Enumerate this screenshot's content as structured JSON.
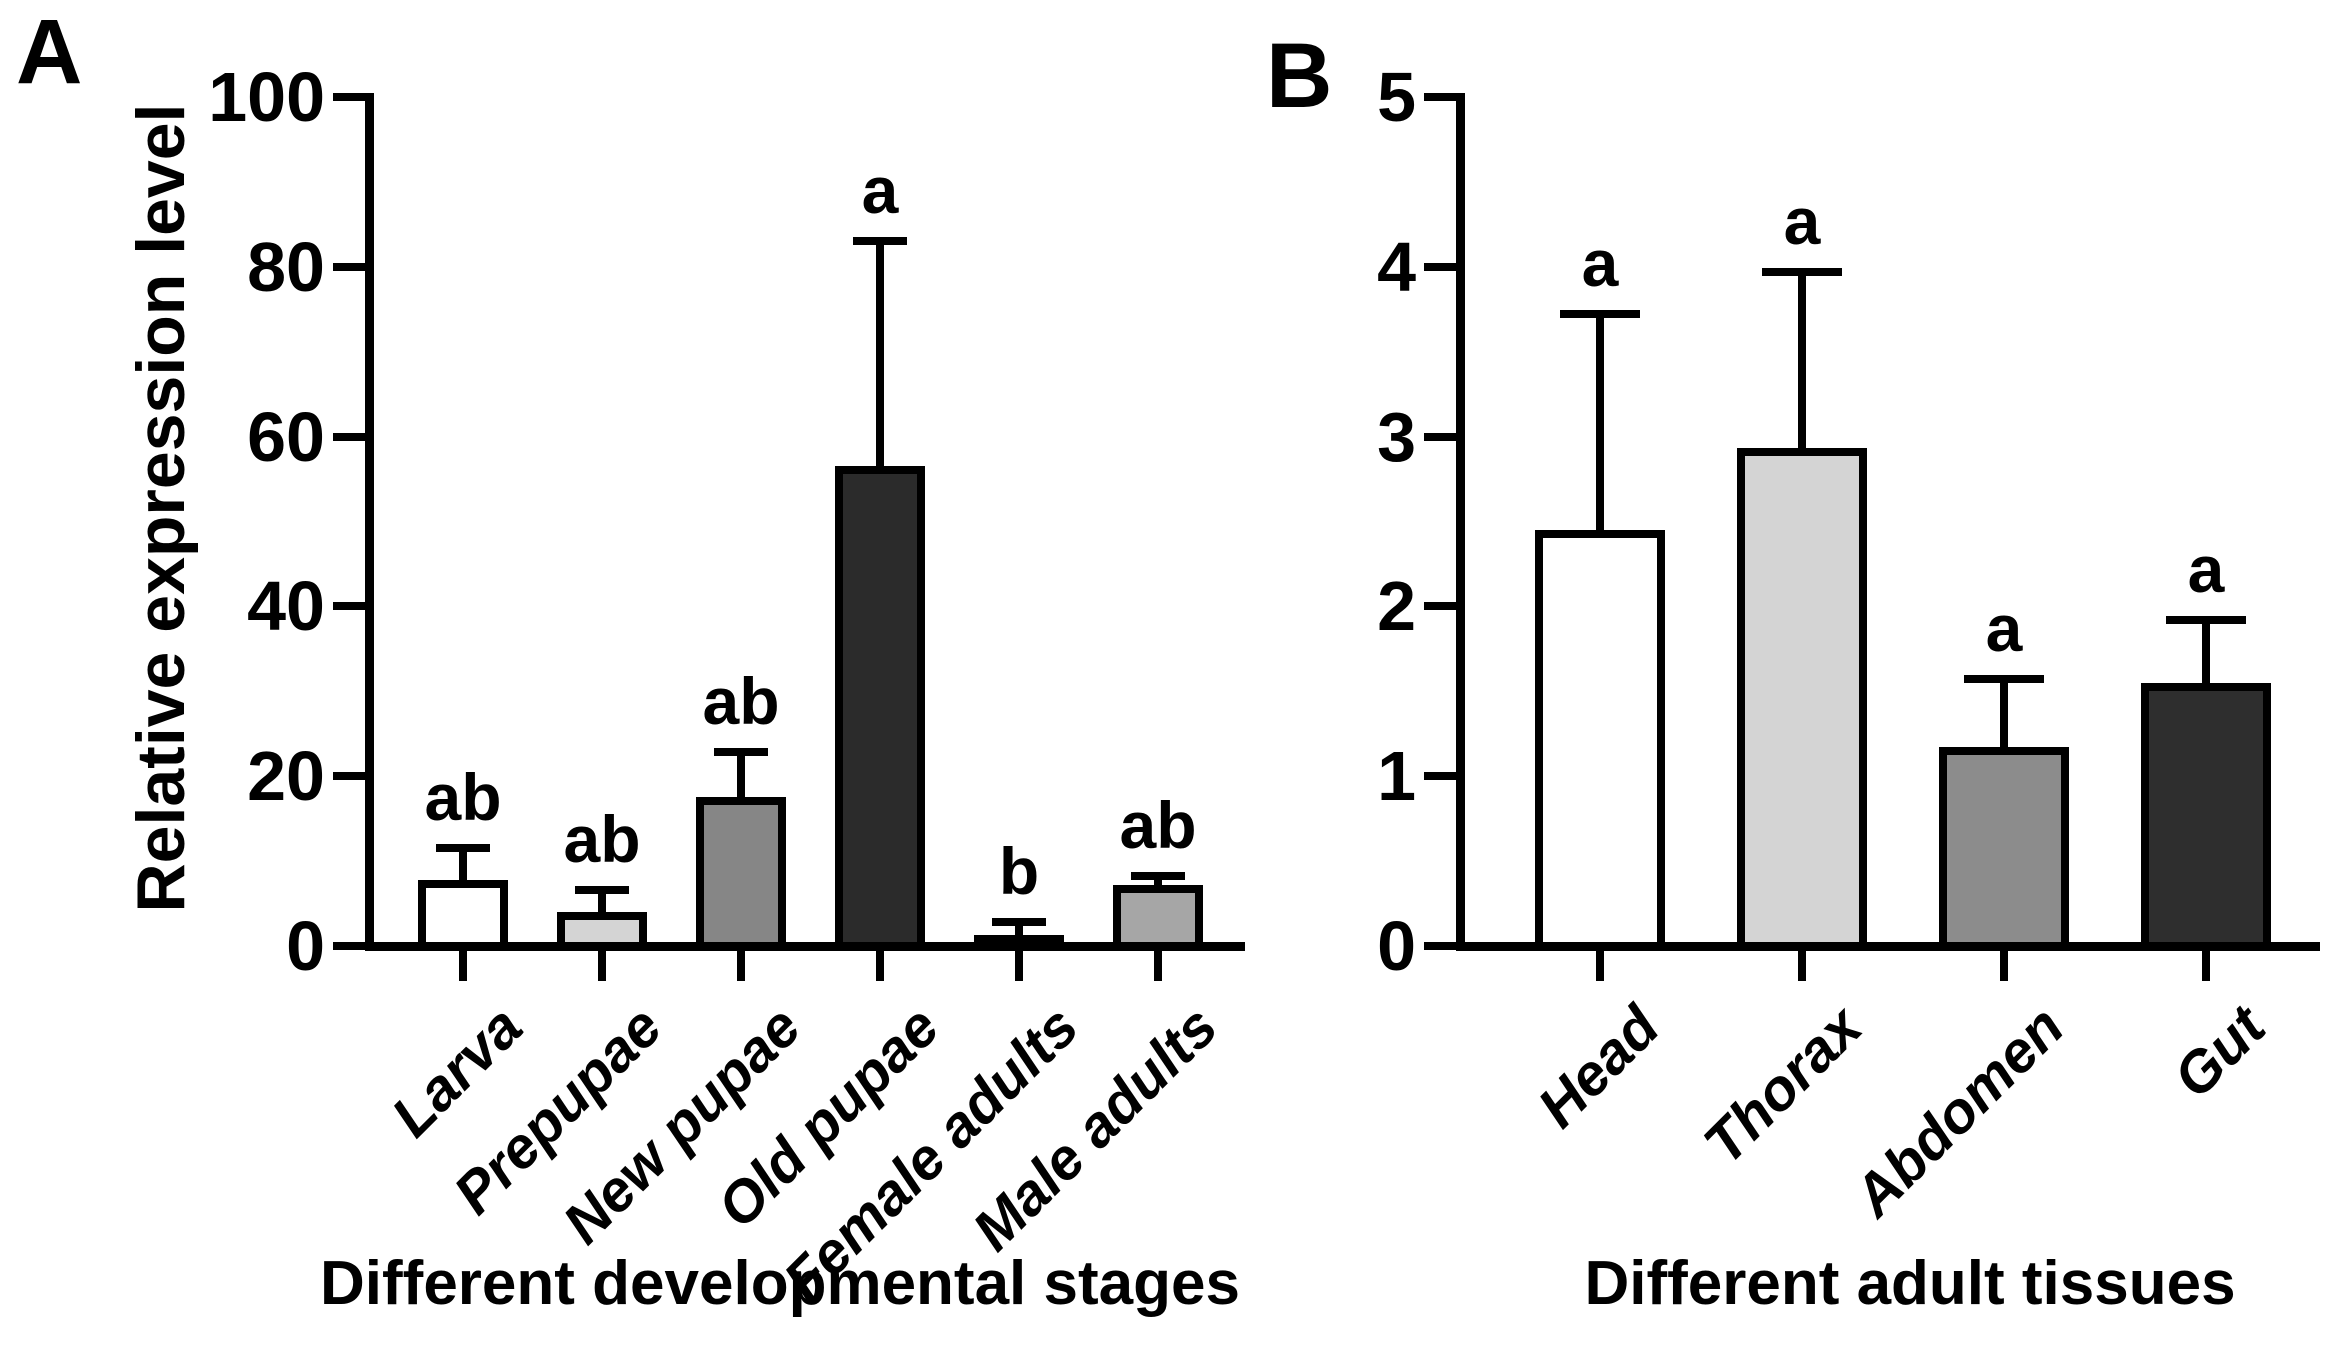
{
  "figure": {
    "panel_a_label": "A",
    "panel_b_label": "B"
  },
  "chart_data": [
    {
      "type": "bar",
      "panel": "A",
      "xlabel": "Different developmental stages",
      "ylabel": "Relative expression level",
      "categories": [
        "Larva",
        "Prepupae",
        "New pupae",
        "Old pupae",
        "Female adults",
        "Male adults"
      ],
      "values": [
        7.8,
        4.0,
        17.5,
        56.5,
        1.3,
        7.2
      ],
      "error_tops": [
        11.5,
        6.6,
        22.8,
        83.0,
        2.8,
        8.3
      ],
      "sig_letters": [
        "ab",
        "ab",
        "ab",
        "a",
        "b",
        "ab"
      ],
      "bar_colors": [
        "#ffffff",
        "#d4d4d4",
        "#868686",
        "#2b2b2b",
        "#0a0a0a",
        "#a6a6a6"
      ],
      "ylim": [
        0,
        100
      ],
      "yticks": [
        0,
        20,
        40,
        60,
        80,
        100
      ],
      "grid": "off",
      "legend": "none",
      "error_bars": "upper SD",
      "axis_color": "#000000"
    },
    {
      "type": "bar",
      "panel": "B",
      "xlabel": "Different adult tissues",
      "ylabel": "",
      "categories": [
        "Head",
        "Thorax",
        "Abdomen",
        "Gut"
      ],
      "values": [
        2.45,
        2.93,
        1.17,
        1.55
      ],
      "error_tops": [
        3.72,
        3.97,
        1.57,
        1.92
      ],
      "sig_letters": [
        "a",
        "a",
        "a",
        "a"
      ],
      "bar_colors": [
        "#ffffff",
        "#d4d4d4",
        "#8c8c8c",
        "#2e2e2e"
      ],
      "ylim": [
        0,
        5
      ],
      "yticks": [
        0,
        1,
        2,
        3,
        4,
        5
      ],
      "grid": "off",
      "legend": "none",
      "error_bars": "upper SD",
      "axis_color": "#000000"
    }
  ]
}
